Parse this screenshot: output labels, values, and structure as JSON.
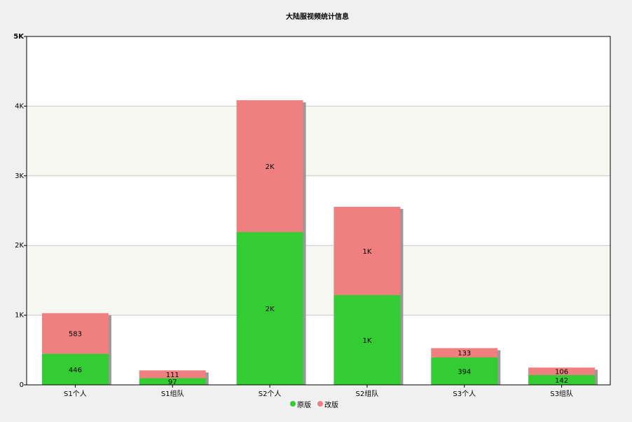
{
  "chart_data": {
    "type": "stacked-bar",
    "title": "大陆服视频统计信息",
    "categories": [
      "S1个人",
      "S1组队",
      "S2个人",
      "S2组队",
      "S3个人",
      "S3组队"
    ],
    "series": [
      {
        "name": "原版",
        "color": "#33cc33",
        "values": [
          446,
          97,
          2193,
          1288,
          394,
          142
        ],
        "value_labels": [
          "446",
          "97",
          "2K",
          "1K",
          "394",
          "142"
        ]
      },
      {
        "name": "改版",
        "color": "#f08080",
        "values": [
          583,
          111,
          1892,
          1267,
          133,
          106
        ],
        "value_labels": [
          "583",
          "111",
          "2K",
          "1K",
          "133",
          "106"
        ]
      }
    ],
    "ylim": [
      0,
      5000
    ],
    "yticks": [
      0,
      {
        "value": 1000,
        "label": "1K"
      },
      {
        "value": 2000,
        "label": "2K"
      },
      {
        "value": 3000,
        "label": "3K"
      },
      {
        "value": 4000,
        "label": "4K"
      },
      {
        "value": 5000,
        "label": "5K"
      }
    ],
    "grid": true,
    "legend": "bottom"
  }
}
